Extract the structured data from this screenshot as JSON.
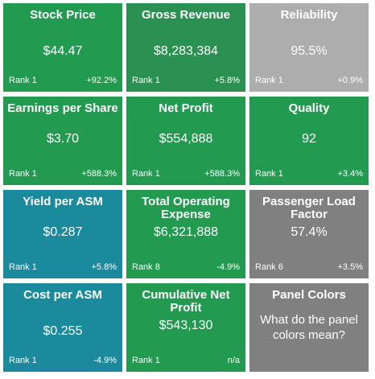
{
  "colors": {
    "green": "#229a4f",
    "green_dark": "#2b9152",
    "teal": "#1b8a9d",
    "gray_light": "#adadad",
    "gray": "#808080"
  },
  "tiles": [
    {
      "title": "Stock Price",
      "value": "$44.47",
      "rank": "Rank 1",
      "change": "+92.2%",
      "color": "#229a4f"
    },
    {
      "title": "Gross Revenue",
      "value": "$8,283,384",
      "rank": "Rank 1",
      "change": "+5.8%",
      "color": "#2b9152"
    },
    {
      "title": "Reliability",
      "value": "95.5%",
      "rank": "Rank 1",
      "change": "+0.9%",
      "color": "#adadad"
    },
    {
      "title": "Earnings per Share",
      "value": "$3.70",
      "rank": "Rank 1",
      "change": "+588.3%",
      "color": "#229a4f"
    },
    {
      "title": "Net Profit",
      "value": "$554,888",
      "rank": "Rank 1",
      "change": "+588.3%",
      "color": "#229a4f"
    },
    {
      "title": "Quality",
      "value": "92",
      "rank": "Rank 1",
      "change": "+3.4%",
      "color": "#229a4f"
    },
    {
      "title": "Yield per ASM",
      "value": "$0.287",
      "rank": "Rank 1",
      "change": "+5.8%",
      "color": "#1b8a9d"
    },
    {
      "title": "Total Operating Expense",
      "value": "$6,321,888",
      "rank": "Rank 8",
      "change": "-4.9%",
      "color": "#229a4f"
    },
    {
      "title": "Passenger Load Factor",
      "value": "57.4%",
      "rank": "Rank 6",
      "change": "+3.5%",
      "color": "#808080"
    },
    {
      "title": "Cost per ASM",
      "value": "$0.255",
      "rank": "Rank 1",
      "change": "-4.9%",
      "color": "#1b8a9d"
    },
    {
      "title": "Cumulative Net Profit",
      "value": "$543,130",
      "rank": "Rank 1",
      "change": "n/a",
      "color": "#229a4f"
    }
  ],
  "info_panel": {
    "title": "Panel Colors",
    "body": "What do the panel colors mean?",
    "color": "#808080"
  }
}
